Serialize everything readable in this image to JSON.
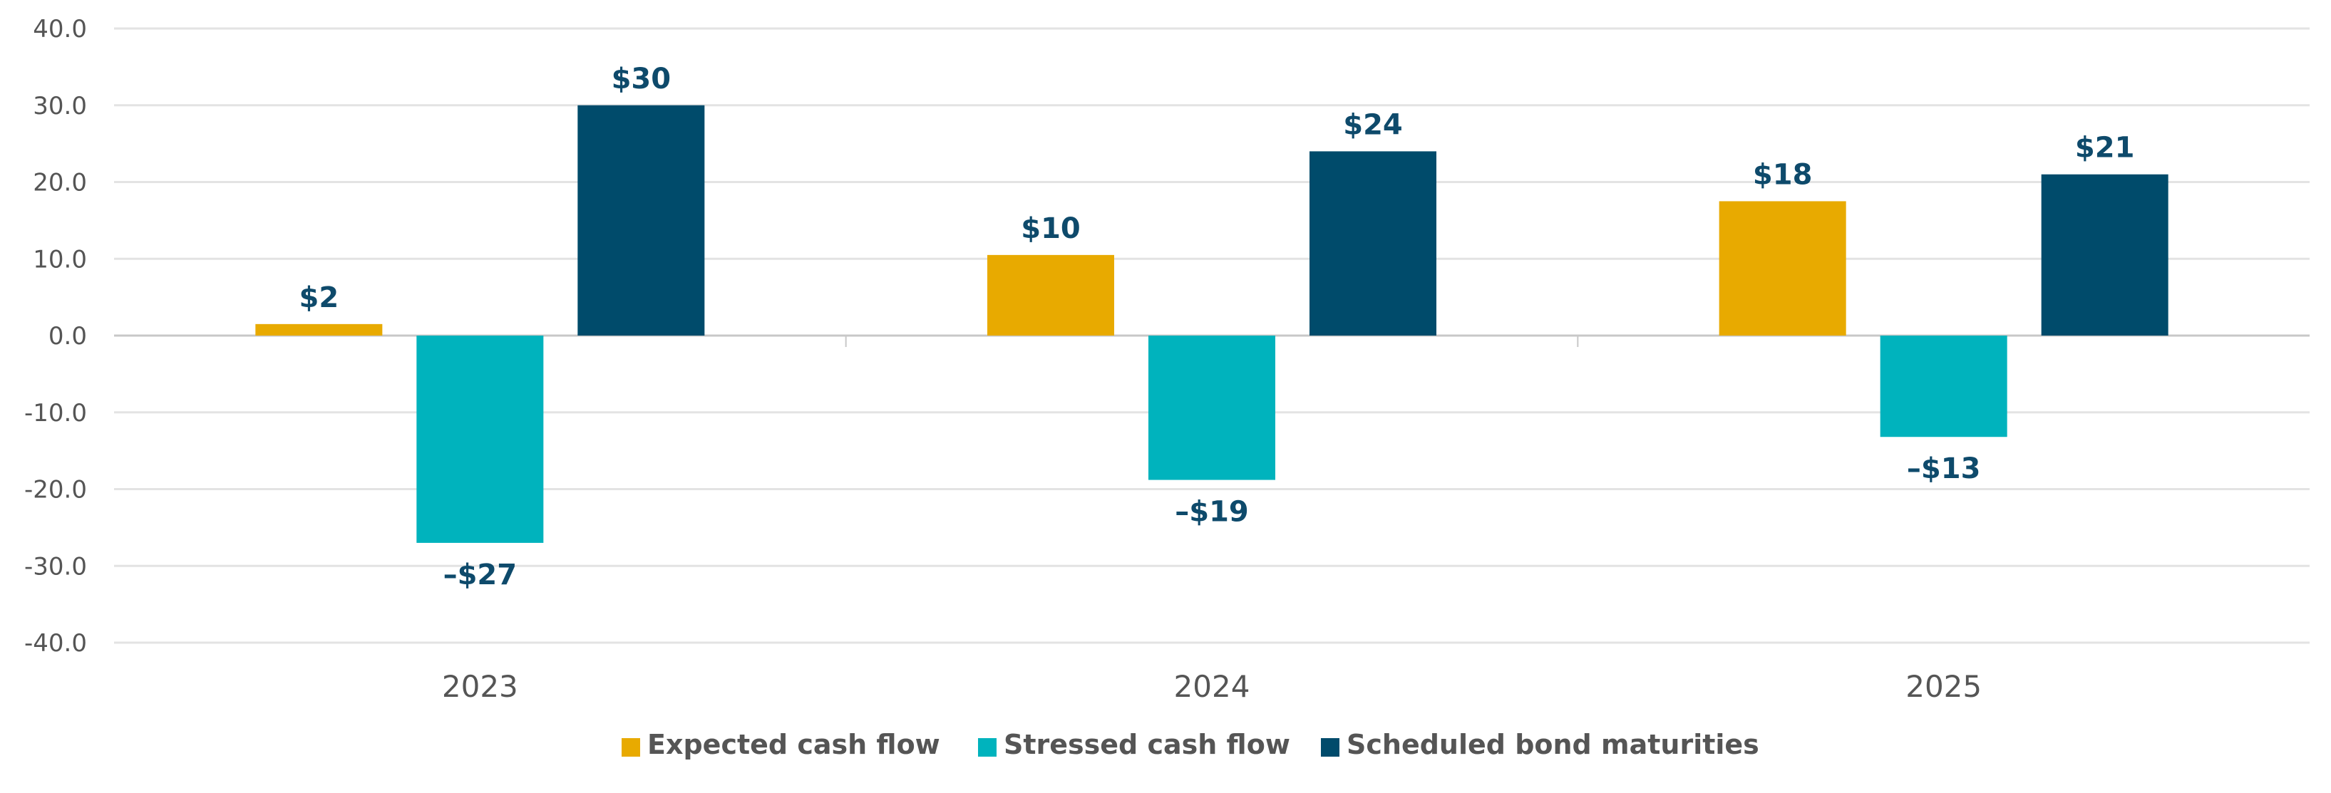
{
  "chart_data": {
    "type": "bar",
    "categories": [
      "2023",
      "2024",
      "2025"
    ],
    "series": [
      {
        "name": "Expected cash flow",
        "color": "#e8aa00",
        "values": [
          1.5,
          10.5,
          17.5
        ],
        "labels": [
          "$2",
          "$10",
          "$18"
        ]
      },
      {
        "name": "Stressed cash flow",
        "color": "#00b3bd",
        "values": [
          -27,
          -18.8,
          -13.2
        ],
        "labels": [
          "–$27",
          "–$19",
          "–$13"
        ]
      },
      {
        "name": "Scheduled bond maturities",
        "color": "#004b6b",
        "values": [
          30,
          24,
          21
        ],
        "labels": [
          "$30",
          "$24",
          "$21"
        ]
      }
    ],
    "ylim": [
      -40,
      40
    ],
    "yticks": [
      "40.0",
      "30.0",
      "20.0",
      "10.0",
      "0.0",
      "-10.0",
      "-20.0",
      "-30.0",
      "-40.0"
    ],
    "ytick_values": [
      40,
      30,
      20,
      10,
      0,
      -10,
      -20,
      -30,
      -40
    ],
    "grid": true,
    "legend_position": "bottom-center",
    "title": "",
    "xlabel": "",
    "ylabel": ""
  }
}
